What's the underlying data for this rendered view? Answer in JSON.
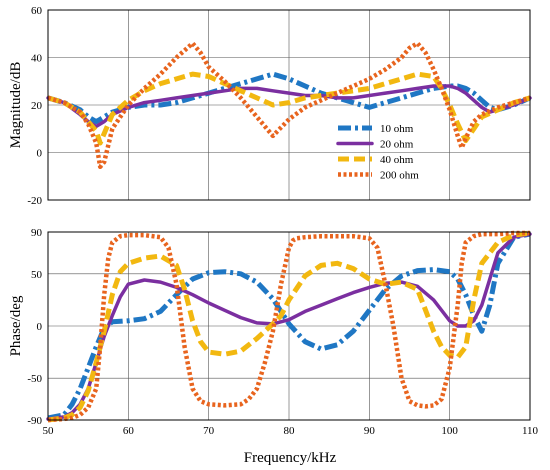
{
  "chart_data": [
    {
      "type": "line",
      "title": "",
      "xlabel": "",
      "ylabel": "Magnitude/dB",
      "xlim": [
        50,
        110
      ],
      "ylim": [
        -20,
        60
      ],
      "xticks": [],
      "yticks": [
        "-20",
        "0",
        "20",
        "40",
        "60"
      ],
      "grid": true,
      "legend": "center-right",
      "series": [
        {
          "name": "10 ohm",
          "color": "#1f77c4",
          "style": "dash-dot",
          "x": [
            50,
            52,
            54,
            55,
            56,
            57,
            58,
            60,
            62,
            64,
            66,
            68,
            70,
            72,
            74,
            76,
            78,
            80,
            82,
            84,
            86,
            88,
            90,
            92,
            94,
            96,
            98,
            100,
            101,
            102,
            103,
            104,
            105,
            106,
            108,
            110
          ],
          "y": [
            23,
            21,
            18,
            15,
            13,
            15,
            17,
            19,
            20,
            20,
            21,
            23,
            25,
            27,
            29,
            31,
            33,
            31,
            28,
            25,
            23,
            21,
            19,
            21,
            23,
            25,
            27,
            28,
            28,
            27,
            25,
            22,
            19,
            18,
            20,
            23
          ]
        },
        {
          "name": "20 ohm",
          "color": "#7b2fa0",
          "style": "solid",
          "x": [
            50,
            52,
            54,
            55,
            56,
            57,
            58,
            60,
            62,
            64,
            66,
            68,
            70,
            72,
            74,
            76,
            78,
            80,
            82,
            84,
            86,
            88,
            90,
            92,
            94,
            96,
            98,
            100,
            101,
            102,
            103,
            104,
            105,
            106,
            108,
            110
          ],
          "y": [
            23,
            21,
            16,
            13,
            11,
            13,
            16,
            19,
            21,
            22,
            23,
            24,
            25,
            26,
            27,
            27,
            26,
            25,
            24,
            24,
            23,
            23,
            24,
            25,
            26,
            27,
            28,
            28,
            27,
            25,
            22,
            19,
            17,
            18,
            20,
            23
          ]
        },
        {
          "name": "40 ohm",
          "color": "#f2b810",
          "style": "dash",
          "x": [
            50,
            52,
            54,
            55,
            56,
            56.5,
            57,
            58,
            60,
            62,
            64,
            66,
            68,
            70,
            72,
            74,
            76,
            78,
            80,
            82,
            84,
            86,
            88,
            90,
            92,
            94,
            96,
            98,
            99,
            100,
            101,
            102,
            103,
            104,
            106,
            108,
            110
          ],
          "y": [
            23,
            21,
            17,
            13,
            9,
            4,
            8,
            16,
            22,
            26,
            29,
            31,
            33,
            32,
            29,
            26,
            23,
            20,
            21,
            23,
            24,
            25,
            26,
            27,
            29,
            31,
            33,
            32,
            27,
            20,
            12,
            5,
            10,
            15,
            18,
            21,
            23
          ]
        },
        {
          "name": "200 ohm",
          "color": "#e8641e",
          "style": "dot",
          "x": [
            50,
            52,
            54,
            55,
            56,
            56.5,
            57,
            58,
            60,
            62,
            64,
            66,
            67,
            68,
            69,
            70,
            72,
            74,
            76,
            78,
            80,
            82,
            84,
            86,
            88,
            90,
            92,
            94,
            95,
            96,
            97,
            98,
            99,
            100,
            101,
            101.5,
            102,
            103,
            104,
            106,
            108,
            110
          ],
          "y": [
            23,
            21,
            17,
            12,
            4,
            -6,
            -4,
            10,
            20,
            27,
            33,
            40,
            43,
            46,
            42,
            36,
            30,
            23,
            15,
            7,
            14,
            19,
            22,
            25,
            28,
            31,
            35,
            40,
            44,
            46,
            42,
            35,
            27,
            18,
            7,
            2,
            6,
            13,
            16,
            19,
            21,
            23
          ]
        }
      ]
    },
    {
      "type": "line",
      "title": "",
      "xlabel": "Frequency/kHz",
      "ylabel": "Phase/deg",
      "xlim": [
        50,
        110
      ],
      "ylim": [
        -90,
        90
      ],
      "xticks": [
        "50",
        "60",
        "70",
        "80",
        "90",
        "100",
        "110"
      ],
      "yticks": [
        "-90",
        "-50",
        "0",
        "50",
        "90"
      ],
      "grid": true,
      "series": [
        {
          "name": "10 ohm",
          "color": "#1f77c4",
          "style": "dash-dot",
          "x": [
            50,
            52,
            53,
            54,
            55,
            56,
            57,
            58,
            60,
            62,
            64,
            66,
            68,
            70,
            72,
            74,
            76,
            78,
            80,
            82,
            84,
            86,
            88,
            90,
            92,
            94,
            96,
            98,
            100,
            101,
            102,
            103,
            104,
            105,
            106,
            108,
            110
          ],
          "y": [
            -88,
            -85,
            -75,
            -60,
            -40,
            -20,
            -2,
            4,
            5,
            7,
            14,
            30,
            45,
            51,
            52,
            50,
            42,
            26,
            2,
            -15,
            -22,
            -18,
            -5,
            15,
            35,
            48,
            53,
            54,
            52,
            45,
            30,
            10,
            -5,
            20,
            60,
            85,
            88
          ]
        },
        {
          "name": "20 ohm",
          "color": "#7b2fa0",
          "style": "solid",
          "x": [
            50,
            52,
            53,
            54,
            55,
            56,
            57,
            58,
            59,
            60,
            62,
            64,
            66,
            68,
            70,
            72,
            74,
            76,
            78,
            80,
            82,
            84,
            86,
            88,
            90,
            92,
            94,
            96,
            98,
            99,
            100,
            101,
            102,
            103,
            104,
            105,
            106,
            108,
            110
          ],
          "y": [
            -89,
            -87,
            -83,
            -75,
            -60,
            -35,
            -10,
            10,
            28,
            40,
            44,
            42,
            37,
            30,
            22,
            15,
            8,
            3,
            2,
            6,
            14,
            20,
            26,
            32,
            37,
            41,
            42,
            38,
            25,
            15,
            5,
            0,
            0,
            5,
            20,
            45,
            70,
            85,
            88
          ]
        },
        {
          "name": "40 ohm",
          "color": "#f2b810",
          "style": "dash",
          "x": [
            50,
            52,
            53,
            54,
            55,
            56,
            57,
            58,
            59,
            60,
            62,
            64,
            66,
            67,
            68,
            69,
            70,
            72,
            74,
            76,
            78,
            79,
            80,
            82,
            84,
            86,
            88,
            90,
            92,
            94,
            96,
            97,
            98,
            99,
            100,
            101,
            102,
            103,
            104,
            106,
            108,
            110
          ],
          "y": [
            -90,
            -88,
            -85,
            -78,
            -62,
            -35,
            -5,
            30,
            52,
            60,
            65,
            67,
            58,
            35,
            5,
            -15,
            -25,
            -27,
            -24,
            -12,
            2,
            10,
            25,
            48,
            58,
            60,
            55,
            45,
            40,
            42,
            35,
            15,
            -5,
            -20,
            -28,
            -30,
            -20,
            25,
            60,
            80,
            87,
            89
          ]
        },
        {
          "name": "200 ohm",
          "color": "#e8641e",
          "style": "dot",
          "x": [
            50,
            52,
            53,
            54,
            55,
            56,
            56.5,
            57,
            57.5,
            58,
            59,
            60,
            62,
            64,
            65,
            66,
            67,
            68,
            69,
            70,
            72,
            74,
            75,
            76,
            77,
            78,
            79,
            80,
            80.5,
            81,
            82,
            84,
            86,
            88,
            90,
            91,
            92,
            93,
            94,
            95,
            96,
            97,
            98,
            99,
            100,
            101,
            101.5,
            102,
            103,
            104,
            106,
            108,
            110
          ],
          "y": [
            -90,
            -89,
            -88,
            -85,
            -78,
            -60,
            -20,
            30,
            65,
            80,
            86,
            87,
            87,
            85,
            75,
            40,
            -20,
            -60,
            -72,
            -75,
            -76,
            -75,
            -70,
            -60,
            -35,
            -5,
            40,
            75,
            82,
            84,
            85,
            86,
            86,
            86,
            84,
            75,
            40,
            0,
            -50,
            -72,
            -76,
            -77,
            -76,
            -70,
            -40,
            20,
            60,
            80,
            86,
            88,
            88,
            89,
            89
          ]
        }
      ]
    }
  ]
}
